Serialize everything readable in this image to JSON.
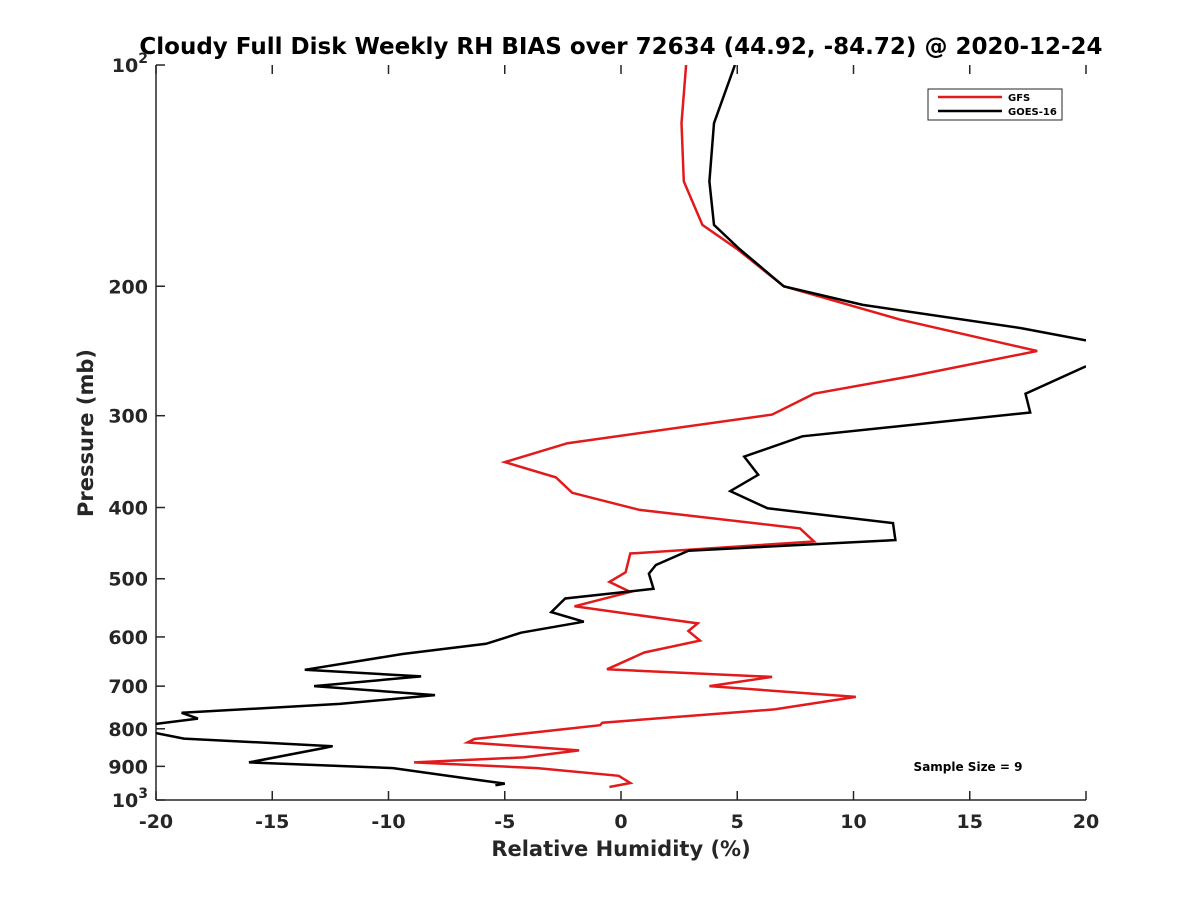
{
  "chart_data": {
    "type": "line",
    "title": "Cloudy Full Disk Weekly RH BIAS over 72634 (44.92, -84.72) @ 2020-12-24",
    "xlabel": "Relative Humidity (%)",
    "ylabel": "Pressure (mb)",
    "xlim": [
      -20,
      20
    ],
    "ylim": [
      100,
      1000
    ],
    "yscale": "log",
    "yreversed": true,
    "grid": false,
    "legend_position": "top-right",
    "x_ticks": [
      -20,
      -15,
      -10,
      -5,
      0,
      5,
      10,
      15,
      20
    ],
    "y_ticks": [
      {
        "value": 100,
        "label": "10",
        "sup": "2"
      },
      {
        "value": 200,
        "label": "200"
      },
      {
        "value": 300,
        "label": "300"
      },
      {
        "value": 400,
        "label": "400"
      },
      {
        "value": 500,
        "label": "500"
      },
      {
        "value": 600,
        "label": "600"
      },
      {
        "value": 700,
        "label": "700"
      },
      {
        "value": 800,
        "label": "800"
      },
      {
        "value": 900,
        "label": "900"
      },
      {
        "value": 1000,
        "label": "10",
        "sup": "3"
      }
    ],
    "annotation": "Sample Size = 9",
    "series": [
      {
        "name": "GFS",
        "color": "#e31a1c",
        "x": [
          2.8,
          2.6,
          2.7,
          3.5,
          5.0,
          7.0,
          12.0,
          17.9,
          12.5,
          8.3,
          6.5,
          -2.3,
          -5.0,
          -2.8,
          -2.1,
          0.8,
          7.7,
          8.3,
          0.4,
          0.2,
          -0.5,
          0.4,
          -2.0,
          3.3,
          2.9,
          3.4,
          1.0,
          -0.6,
          6.5,
          3.8,
          10.1,
          6.6,
          -0.8,
          -0.9,
          -6.3,
          -6.6,
          -1.8,
          -4.2,
          -8.9,
          -3.6,
          -0.1,
          0.4,
          -0.5
        ],
        "y": [
          100,
          120,
          144,
          165,
          178,
          200,
          222,
          245,
          265,
          280,
          299,
          327,
          347,
          364,
          382,
          403,
          427,
          445,
          462,
          490,
          505,
          521,
          545,
          575,
          589,
          607,
          630,
          664,
          680,
          700,
          724,
          753,
          785,
          791,
          826,
          835,
          856,
          875,
          889,
          905,
          927,
          948,
          960
        ]
      },
      {
        "name": "GOES-16",
        "color": "#000000",
        "x": [
          4.9,
          4.0,
          3.8,
          4.0,
          5.1,
          7.0,
          10.4,
          17.2,
          20.0,
          null,
          20.0,
          17.4,
          17.6,
          7.8,
          5.3,
          5.9,
          4.7,
          6.3,
          11.7,
          11.8,
          2.9,
          1.5,
          1.2,
          1.4,
          -2.4,
          -3.0,
          -1.6,
          -4.3,
          -5.8,
          -9.4,
          -13.6,
          -8.6,
          -13.2,
          -8.0,
          -12.1,
          -18.9,
          -18.2,
          -20.0,
          null,
          -20.0,
          -18.8,
          -12.4,
          -12.8,
          -16.0,
          -9.8,
          -7.0,
          -5.0,
          -5.4
        ],
        "y": [
          100,
          120,
          144,
          165,
          178,
          200,
          212,
          228,
          237,
          null,
          257,
          280,
          297,
          320,
          341,
          361,
          380,
          401,
          420,
          443,
          458,
          479,
          492,
          516,
          532,
          555,
          572,
          592,
          613,
          633,
          665,
          679,
          700,
          720,
          740,
          761,
          775,
          788,
          null,
          811,
          825,
          845,
          850,
          889,
          905,
          931,
          950,
          955
        ]
      }
    ]
  }
}
